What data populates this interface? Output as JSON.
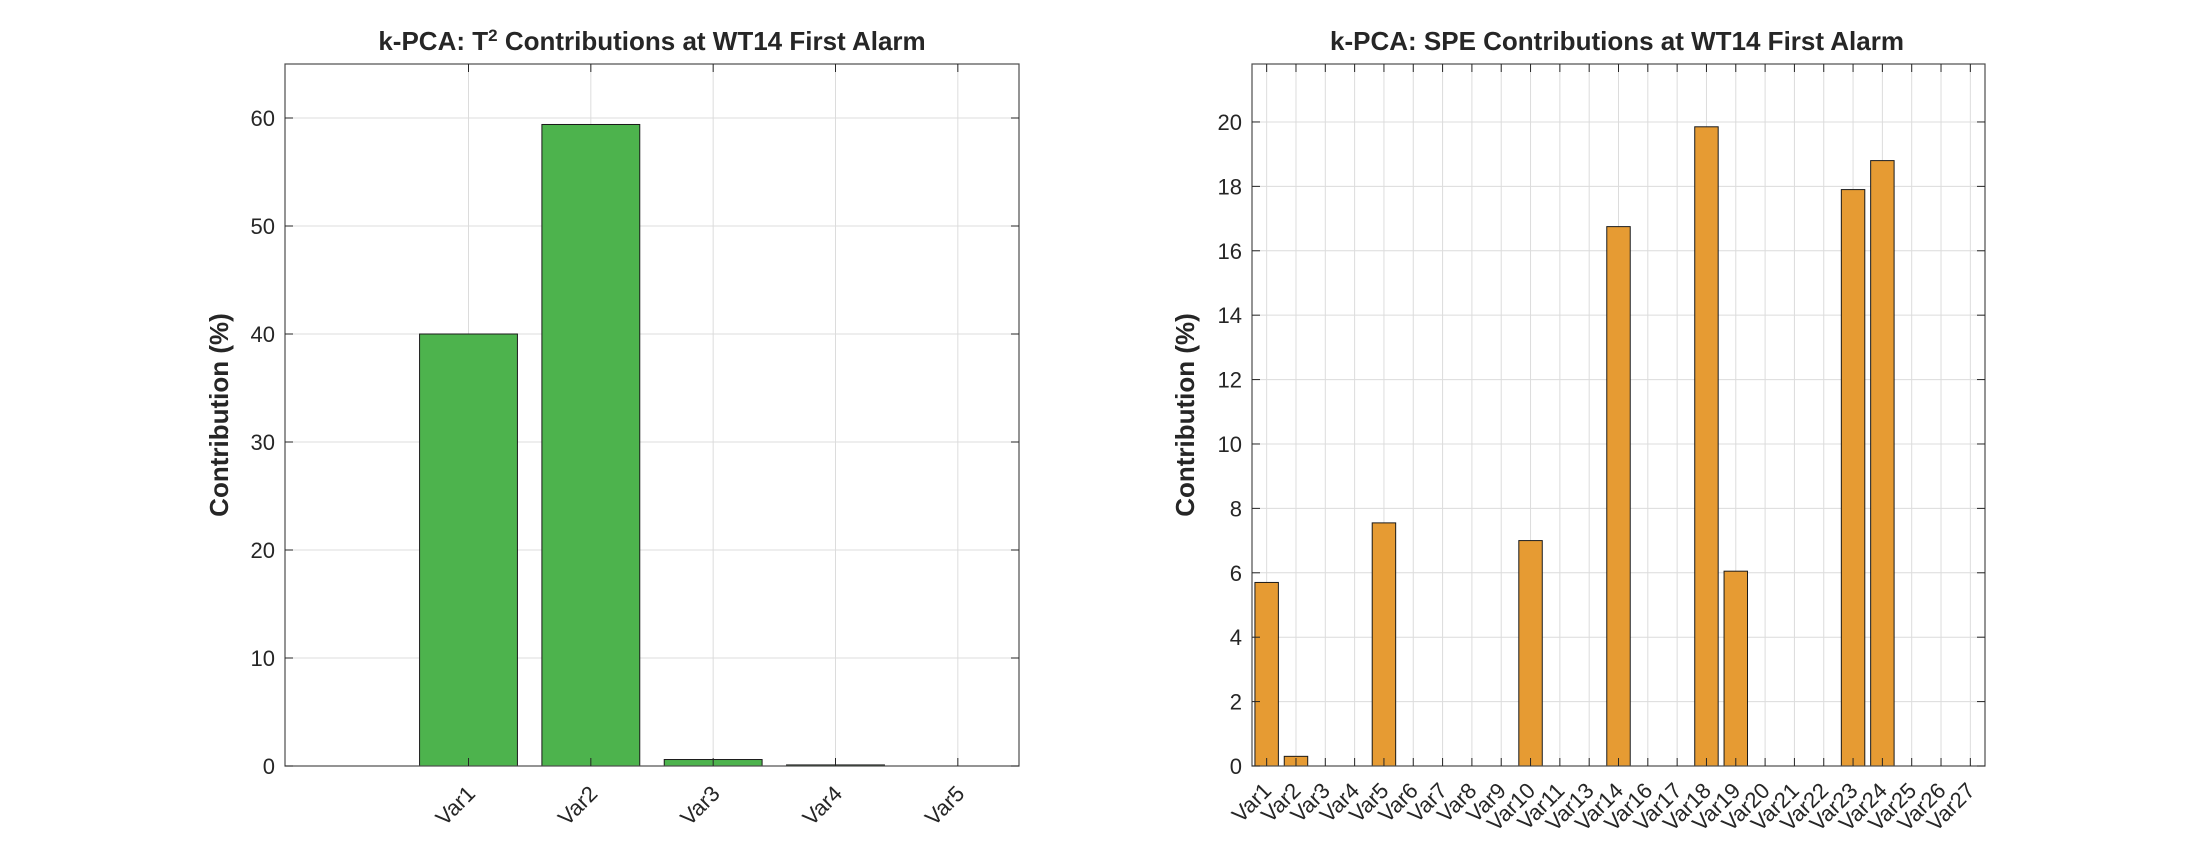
{
  "chart_data": [
    {
      "type": "bar",
      "title_parts": [
        "k-PCA:  T",
        "2",
        "  Contributions  at  WT14  First  Alarm"
      ],
      "ylabel": "Contribution (%)",
      "categories": [
        "",
        "Var1",
        "Var2",
        "Var3",
        "Var4",
        "Var5"
      ],
      "values": [
        0,
        40.0,
        59.4,
        0.6,
        0.1,
        0.0
      ],
      "ylim": [
        0,
        65
      ],
      "yticks": [
        0,
        10,
        20,
        30,
        40,
        50,
        60
      ],
      "grid": true,
      "color": "#4db34d"
    },
    {
      "type": "bar",
      "title": "k-PCA:  SPE  Contributions  at  WT14  First  Alarm",
      "ylabel": "Contribution (%)",
      "categories": [
        "Var1",
        "Var2",
        "Var3",
        "Var4",
        "Var5",
        "Var6",
        "Var7",
        "Var8",
        "Var9",
        "Var10",
        "Var11",
        "Var13",
        "Var14",
        "Var16",
        "Var17",
        "Var18",
        "Var19",
        "Var20",
        "Var21",
        "Var22",
        "Var23",
        "Var24",
        "Var25",
        "Var26",
        "Var27"
      ],
      "values": [
        5.7,
        0.3,
        0,
        0,
        7.55,
        0,
        0,
        0,
        0,
        7.0,
        0,
        0,
        16.75,
        0,
        0,
        19.85,
        6.05,
        0,
        0,
        0,
        17.9,
        18.8,
        0,
        0,
        0
      ],
      "ylim": [
        0,
        21.8
      ],
      "yticks": [
        0,
        2,
        4,
        6,
        8,
        10,
        12,
        14,
        16,
        18,
        20
      ],
      "grid": true,
      "color": "#e69b33"
    }
  ]
}
